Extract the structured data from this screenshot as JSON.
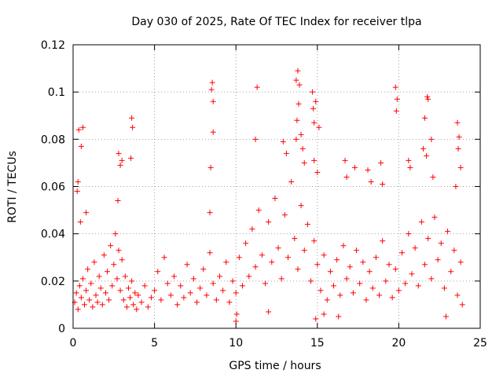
{
  "chart_data": {
    "type": "scatter",
    "title": "Day 030 of 2025, Rate Of TEC Index for receiver tlpa",
    "xlabel": "GPS time / hours",
    "ylabel": "ROTI / TECUs",
    "xlim": [
      0,
      25
    ],
    "ylim": [
      0,
      0.12
    ],
    "xticks": [
      0,
      5,
      10,
      15,
      20,
      25
    ],
    "xtick_labels": [
      "0",
      "5",
      "10",
      "15",
      "20",
      "25"
    ],
    "yticks": [
      0,
      0.02,
      0.04,
      0.06,
      0.08,
      0.1,
      0.12
    ],
    "ytick_labels": [
      "0",
      "0.02",
      "0.04",
      "0.06",
      "0.08",
      "0.1",
      "0.12"
    ],
    "grid": true,
    "marker": "+",
    "color": "#ff0000",
    "series": [
      {
        "name": "ROTI",
        "points": [
          [
            0.1,
            0.011
          ],
          [
            0.2,
            0.015
          ],
          [
            0.3,
            0.008
          ],
          [
            0.4,
            0.018
          ],
          [
            0.5,
            0.013
          ],
          [
            0.6,
            0.021
          ],
          [
            0.7,
            0.01
          ],
          [
            0.8,
            0.016
          ],
          [
            0.9,
            0.025
          ],
          [
            1.0,
            0.012
          ],
          [
            1.1,
            0.019
          ],
          [
            1.2,
            0.009
          ],
          [
            1.3,
            0.028
          ],
          [
            1.4,
            0.014
          ],
          [
            1.5,
            0.011
          ],
          [
            1.6,
            0.022
          ],
          [
            1.7,
            0.017
          ],
          [
            1.8,
            0.01
          ],
          [
            1.9,
            0.031
          ],
          [
            2.0,
            0.015
          ],
          [
            2.1,
            0.024
          ],
          [
            2.2,
            0.012
          ],
          [
            2.3,
            0.035
          ],
          [
            2.4,
            0.018
          ],
          [
            2.5,
            0.027
          ],
          [
            2.6,
            0.04
          ],
          [
            2.7,
            0.021
          ],
          [
            2.8,
            0.033
          ],
          [
            2.9,
            0.016
          ],
          [
            3.0,
            0.029
          ],
          [
            3.1,
            0.012
          ],
          [
            3.2,
            0.022
          ],
          [
            3.3,
            0.009
          ],
          [
            3.4,
            0.017
          ],
          [
            3.5,
            0.013
          ],
          [
            3.6,
            0.02
          ],
          [
            3.7,
            0.01
          ],
          [
            3.8,
            0.015
          ],
          [
            3.9,
            0.008
          ],
          [
            4.0,
            0.014
          ],
          [
            4.2,
            0.011
          ],
          [
            4.4,
            0.018
          ],
          [
            4.6,
            0.009
          ],
          [
            4.8,
            0.013
          ],
          [
            5.0,
            0.016
          ],
          [
            5.2,
            0.024
          ],
          [
            5.4,
            0.012
          ],
          [
            5.6,
            0.03
          ],
          [
            5.8,
            0.019
          ],
          [
            6.0,
            0.014
          ],
          [
            6.2,
            0.022
          ],
          [
            6.4,
            0.01
          ],
          [
            6.6,
            0.018
          ],
          [
            6.8,
            0.013
          ],
          [
            7.0,
            0.027
          ],
          [
            7.2,
            0.015
          ],
          [
            7.4,
            0.021
          ],
          [
            7.6,
            0.011
          ],
          [
            7.8,
            0.017
          ],
          [
            8.0,
            0.025
          ],
          [
            8.2,
            0.014
          ],
          [
            8.4,
            0.032
          ],
          [
            8.6,
            0.019
          ],
          [
            8.8,
            0.012
          ],
          [
            9.0,
            0.022
          ],
          [
            9.2,
            0.016
          ],
          [
            9.4,
            0.028
          ],
          [
            9.6,
            0.011
          ],
          [
            9.8,
            0.02
          ],
          [
            10.0,
            0.015
          ],
          [
            10.2,
            0.03
          ],
          [
            10.4,
            0.018
          ],
          [
            10.6,
            0.036
          ],
          [
            10.8,
            0.022
          ],
          [
            11.0,
            0.042
          ],
          [
            11.2,
            0.026
          ],
          [
            11.4,
            0.05
          ],
          [
            11.6,
            0.031
          ],
          [
            11.8,
            0.019
          ],
          [
            12.0,
            0.045
          ],
          [
            12.2,
            0.028
          ],
          [
            12.4,
            0.055
          ],
          [
            12.6,
            0.034
          ],
          [
            12.8,
            0.021
          ],
          [
            13.0,
            0.048
          ],
          [
            13.2,
            0.03
          ],
          [
            13.4,
            0.062
          ],
          [
            13.6,
            0.038
          ],
          [
            13.8,
            0.025
          ],
          [
            14.0,
            0.052
          ],
          [
            14.2,
            0.033
          ],
          [
            14.4,
            0.044
          ],
          [
            14.6,
            0.02
          ],
          [
            14.8,
            0.037
          ],
          [
            15.0,
            0.027
          ],
          [
            15.2,
            0.016
          ],
          [
            15.4,
            0.031
          ],
          [
            15.6,
            0.012
          ],
          [
            15.8,
            0.024
          ],
          [
            16.0,
            0.018
          ],
          [
            16.2,
            0.029
          ],
          [
            16.4,
            0.014
          ],
          [
            16.6,
            0.035
          ],
          [
            16.8,
            0.021
          ],
          [
            17.0,
            0.026
          ],
          [
            17.2,
            0.015
          ],
          [
            17.4,
            0.033
          ],
          [
            17.6,
            0.019
          ],
          [
            17.8,
            0.028
          ],
          [
            18.0,
            0.012
          ],
          [
            18.2,
            0.024
          ],
          [
            18.4,
            0.017
          ],
          [
            18.6,
            0.03
          ],
          [
            18.8,
            0.014
          ],
          [
            19.0,
            0.037
          ],
          [
            19.2,
            0.02
          ],
          [
            19.4,
            0.027
          ],
          [
            19.6,
            0.013
          ],
          [
            19.8,
            0.025
          ],
          [
            20.0,
            0.016
          ],
          [
            20.2,
            0.032
          ],
          [
            20.4,
            0.019
          ],
          [
            20.6,
            0.04
          ],
          [
            20.8,
            0.023
          ],
          [
            21.0,
            0.034
          ],
          [
            21.2,
            0.018
          ],
          [
            21.4,
            0.045
          ],
          [
            21.6,
            0.027
          ],
          [
            21.8,
            0.038
          ],
          [
            22.0,
            0.021
          ],
          [
            22.2,
            0.047
          ],
          [
            22.4,
            0.029
          ],
          [
            22.6,
            0.036
          ],
          [
            22.8,
            0.017
          ],
          [
            23.0,
            0.041
          ],
          [
            23.2,
            0.024
          ],
          [
            23.4,
            0.033
          ],
          [
            23.6,
            0.014
          ],
          [
            23.8,
            0.028
          ],
          [
            23.9,
            0.01
          ],
          [
            0.3,
            0.062
          ],
          [
            0.35,
            0.084
          ],
          [
            0.5,
            0.077
          ],
          [
            0.6,
            0.085
          ],
          [
            0.25,
            0.058
          ],
          [
            0.45,
            0.045
          ],
          [
            0.8,
            0.049
          ],
          [
            2.8,
            0.074
          ],
          [
            2.9,
            0.069
          ],
          [
            3.0,
            0.071
          ],
          [
            2.75,
            0.054
          ],
          [
            3.6,
            0.089
          ],
          [
            3.65,
            0.085
          ],
          [
            3.55,
            0.072
          ],
          [
            8.5,
            0.101
          ],
          [
            8.55,
            0.104
          ],
          [
            8.6,
            0.096
          ],
          [
            8.6,
            0.083
          ],
          [
            8.45,
            0.068
          ],
          [
            8.4,
            0.049
          ],
          [
            11.3,
            0.102
          ],
          [
            11.2,
            0.08
          ],
          [
            12.9,
            0.079
          ],
          [
            13.1,
            0.074
          ],
          [
            13.7,
            0.105
          ],
          [
            13.8,
            0.109
          ],
          [
            13.9,
            0.103
          ],
          [
            13.85,
            0.095
          ],
          [
            13.75,
            0.088
          ],
          [
            13.7,
            0.08
          ],
          [
            14.0,
            0.082
          ],
          [
            14.1,
            0.076
          ],
          [
            14.2,
            0.07
          ],
          [
            14.7,
            0.1
          ],
          [
            14.75,
            0.093
          ],
          [
            14.8,
            0.087
          ],
          [
            14.9,
            0.096
          ],
          [
            15.1,
            0.085
          ],
          [
            14.8,
            0.071
          ],
          [
            15.0,
            0.066
          ],
          [
            16.7,
            0.071
          ],
          [
            16.8,
            0.064
          ],
          [
            17.3,
            0.068
          ],
          [
            18.1,
            0.067
          ],
          [
            18.3,
            0.062
          ],
          [
            18.9,
            0.07
          ],
          [
            19.0,
            0.061
          ],
          [
            19.8,
            0.102
          ],
          [
            19.9,
            0.097
          ],
          [
            19.85,
            0.092
          ],
          [
            20.6,
            0.071
          ],
          [
            20.7,
            0.068
          ],
          [
            21.6,
            0.089
          ],
          [
            21.75,
            0.098
          ],
          [
            21.8,
            0.097
          ],
          [
            21.5,
            0.076
          ],
          [
            21.7,
            0.073
          ],
          [
            22.0,
            0.08
          ],
          [
            22.1,
            0.064
          ],
          [
            23.6,
            0.087
          ],
          [
            23.7,
            0.081
          ],
          [
            23.65,
            0.076
          ],
          [
            23.8,
            0.068
          ],
          [
            23.5,
            0.06
          ],
          [
            10.0,
            0.003
          ],
          [
            10.05,
            0.006
          ],
          [
            14.9,
            0.004
          ],
          [
            15.4,
            0.006
          ],
          [
            16.3,
            0.005
          ],
          [
            22.9,
            0.005
          ],
          [
            12.0,
            0.007
          ]
        ]
      }
    ]
  }
}
